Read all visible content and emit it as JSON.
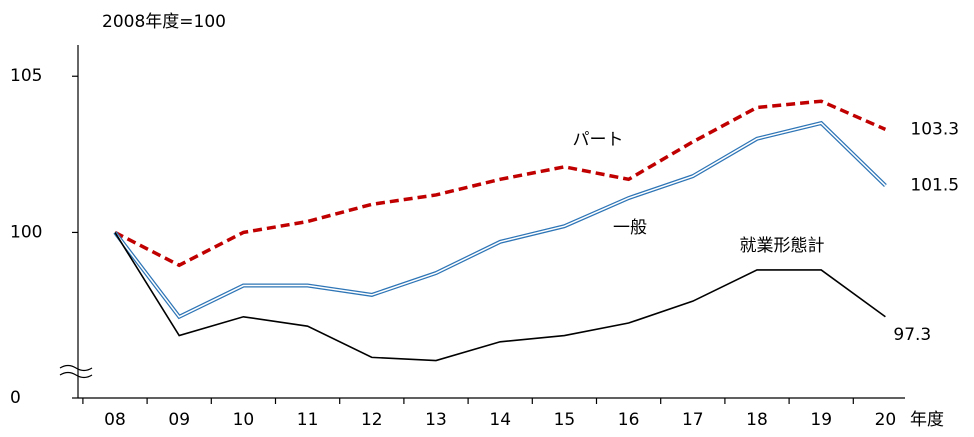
{
  "chart_data": {
    "type": "line",
    "title": "2008年度=100",
    "x_label": "年度",
    "categories": [
      "08",
      "09",
      "10",
      "11",
      "12",
      "13",
      "14",
      "15",
      "16",
      "17",
      "18",
      "19",
      "20"
    ],
    "series": [
      {
        "name": "パート",
        "color": "#c00000",
        "style": "dashed",
        "values": [
          100,
          98.95,
          100,
          100.35,
          100.9,
          101.2,
          101.7,
          102.1,
          101.7,
          102.9,
          104.0,
          104.2,
          103.3
        ],
        "value_labels": [
          null,
          null,
          null,
          null,
          null,
          null,
          null,
          null,
          null,
          null,
          null,
          null,
          "103.3"
        ]
      },
      {
        "name": "一般",
        "color": "#2e75b6",
        "style": "double",
        "values": [
          100,
          97.3,
          98.3,
          98.3,
          98.0,
          98.7,
          99.7,
          100.2,
          101.1,
          101.8,
          103.0,
          103.5,
          101.5
        ],
        "value_labels": [
          null,
          null,
          null,
          null,
          null,
          null,
          null,
          null,
          null,
          null,
          null,
          null,
          "101.5"
        ]
      },
      {
        "name": "就業形態計",
        "color": "#000000",
        "style": "solid",
        "values": [
          100,
          96.7,
          97.3,
          97.0,
          96.0,
          95.9,
          96.5,
          96.7,
          97.1,
          97.8,
          98.8,
          98.8,
          97.3
        ],
        "value_labels": [
          null,
          null,
          null,
          null,
          null,
          null,
          null,
          null,
          null,
          null,
          null,
          null,
          "97.3"
        ]
      }
    ],
    "ylim": [
      0,
      106
    ],
    "y_break": [
      0,
      94.7
    ],
    "yticks": [
      0,
      100,
      105
    ]
  }
}
